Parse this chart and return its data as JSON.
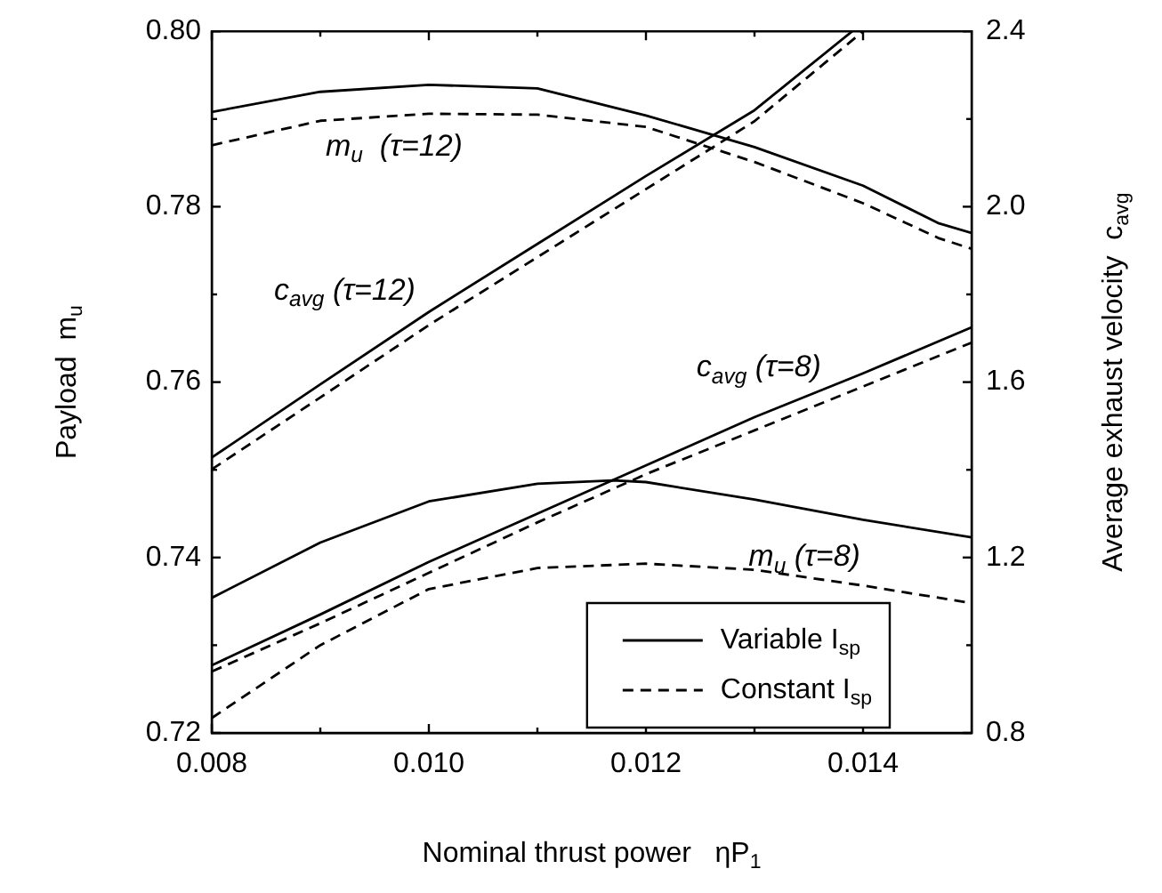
{
  "chart_data": {
    "type": "line",
    "xlabel": "Nominal thrust power   ηP$_{1}$",
    "ylabel": "Payload  m$_{u}$",
    "y2label": "Average exhaust velocity  c$_{avg}$",
    "xlim": [
      0.008,
      0.015
    ],
    "xticks": [
      {
        "value": 0.008,
        "label": "0.008"
      },
      {
        "value": 0.009,
        "label": null
      },
      {
        "value": 0.01,
        "label": "0.010"
      },
      {
        "value": 0.011,
        "label": null
      },
      {
        "value": 0.012,
        "label": "0.012"
      },
      {
        "value": 0.013,
        "label": null
      },
      {
        "value": 0.014,
        "label": "0.014"
      }
    ],
    "ylim": [
      0.72,
      0.8
    ],
    "yticks": [
      0.72,
      {
        "value": 0.73,
        "label": null
      },
      0.74,
      {
        "value": 0.75,
        "label": null
      },
      0.76,
      {
        "value": 0.77,
        "label": null
      },
      0.78,
      {
        "value": 0.79,
        "label": null
      },
      {
        "value": 0.8,
        "label": "0.80"
      }
    ],
    "y2lim": [
      0.8,
      2.4
    ],
    "y2ticks": [
      0.8,
      {
        "value": 1.0,
        "label": null
      },
      1.2,
      {
        "value": 1.4,
        "label": null
      },
      1.6,
      {
        "value": 1.8,
        "label": null
      },
      {
        "value": 2.0,
        "label": "2.0"
      },
      {
        "value": 2.2,
        "label": null
      },
      2.4
    ],
    "legend": "bottom right",
    "marker": "none",
    "series": [
      {
        "name": "Variable I$_{sp}$",
        "color": "#000000",
        "line_style": "solid",
        "x": [
          0.008,
          0.009,
          0.01,
          0.011,
          0.012,
          0.013,
          0.014,
          0.0147,
          0.015
        ],
        "values": [
          0.7908,
          0.7931,
          0.7939,
          0.7935,
          0.7904,
          0.7868,
          0.7824,
          0.7781,
          0.777
        ]
      },
      {
        "name": "Constant I$_{sp}$",
        "color": "#000000",
        "line_style": "dashed",
        "x": [
          0.008,
          0.009,
          0.01,
          0.011,
          0.012,
          0.013,
          0.014,
          0.0147,
          0.015
        ],
        "values": [
          0.787,
          0.7898,
          0.7906,
          0.7905,
          0.7891,
          0.7851,
          0.7804,
          0.7764,
          0.7752
        ]
      },
      {
        "color": "#000000",
        "line_style": "solid",
        "x": [
          0.008,
          0.009,
          0.01,
          0.011,
          0.0117,
          0.012,
          0.013,
          0.014,
          0.015
        ],
        "values": [
          0.7354,
          0.7417,
          0.7464,
          0.7484,
          0.7488,
          0.7486,
          0.7466,
          0.7443,
          0.7423
        ]
      },
      {
        "color": "#000000",
        "line_style": "dashed",
        "x": [
          0.008,
          0.009,
          0.01,
          0.011,
          0.012,
          0.013,
          0.014,
          0.015
        ],
        "values": [
          0.7217,
          0.73,
          0.7364,
          0.7388,
          0.7393,
          0.7386,
          0.7368,
          0.7348
        ]
      },
      {
        "color": "#000000",
        "line_style": "solid",
        "axis": "y2",
        "x": [
          0.008,
          0.009,
          0.01,
          0.011,
          0.012,
          0.013,
          0.0139
        ],
        "values": [
          1.428,
          1.595,
          1.76,
          1.915,
          2.07,
          2.22,
          2.4
        ]
      },
      {
        "color": "#000000",
        "line_style": "dashed",
        "axis": "y2",
        "x": [
          0.008,
          0.009,
          0.01,
          0.011,
          0.012,
          0.013,
          0.014
        ],
        "values": [
          1.401,
          1.565,
          1.73,
          1.885,
          2.04,
          2.195,
          2.4
        ]
      },
      {
        "color": "#000000",
        "line_style": "solid",
        "axis": "y2",
        "x": [
          0.008,
          0.009,
          0.01,
          0.011,
          0.012,
          0.013,
          0.014,
          0.015
        ],
        "values": [
          0.954,
          1.07,
          1.19,
          1.3,
          1.41,
          1.52,
          1.62,
          1.725
        ]
      },
      {
        "color": "#000000",
        "line_style": "dashed",
        "axis": "y2",
        "x": [
          0.008,
          0.009,
          0.01,
          0.011,
          0.012,
          0.013,
          0.014,
          0.015
        ],
        "values": [
          0.94,
          1.05,
          1.165,
          1.28,
          1.39,
          1.49,
          1.59,
          1.69
        ]
      }
    ],
    "annotations": [
      "m$_{u}$  (τ=12)",
      "c$_{avg}$ (τ=12)",
      "c$_{avg}$ (τ=8)",
      "m$_{u}$ (τ=8)"
    ]
  }
}
